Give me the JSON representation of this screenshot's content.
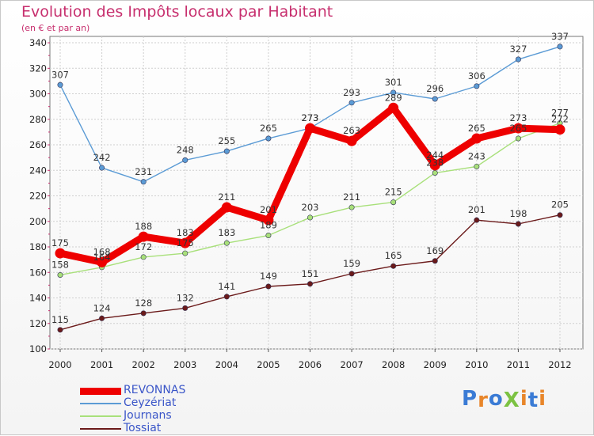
{
  "header": {
    "title": "Evolution des Impôts locaux par Habitant",
    "subtitle": "(en € et par an)"
  },
  "logo": {
    "text": "ProXiti",
    "letters": [
      "P",
      "r",
      "o",
      "X",
      "i",
      "t",
      "i"
    ],
    "colors": [
      "#3a7bd5",
      "#e8862a",
      "#3a7bd5",
      "#7cc242",
      "#e8862a",
      "#3a7bd5",
      "#e8862a"
    ]
  },
  "chart_data": {
    "type": "line",
    "title": "Evolution des Impôts locaux par Habitant",
    "subtitle": "(en € et par an)",
    "xlabel": "",
    "ylabel": "",
    "x": [
      "2000",
      "2001",
      "2002",
      "2003",
      "2004",
      "2005",
      "2006",
      "2007",
      "2008",
      "2009",
      "2010",
      "2011",
      "2012"
    ],
    "ylim": [
      100,
      345
    ],
    "yticks": [
      100,
      120,
      140,
      160,
      180,
      200,
      220,
      240,
      260,
      280,
      300,
      320,
      340
    ],
    "grid": true,
    "legend_position": "bottom-left",
    "series": [
      {
        "name": "REVONNAS",
        "color": "#ee0000",
        "values": [
          175,
          168,
          188,
          183,
          211,
          201,
          273,
          263,
          289,
          244,
          265,
          273,
          272
        ]
      },
      {
        "name": "Ceyzériat",
        "color": "#5b9bd5",
        "values": [
          307,
          242,
          231,
          248,
          255,
          265,
          273,
          293,
          301,
          296,
          306,
          327,
          337
        ]
      },
      {
        "name": "Journans",
        "color": "#a8e07a",
        "values": [
          158,
          164,
          172,
          175,
          183,
          189,
          203,
          211,
          215,
          238,
          243,
          265,
          277
        ]
      },
      {
        "name": "Tossiat",
        "color": "#6b1a1a",
        "values": [
          115,
          124,
          128,
          132,
          141,
          149,
          151,
          159,
          165,
          169,
          201,
          198,
          205
        ]
      }
    ],
    "data_labels": {
      "REVONNAS": [
        "175",
        "168",
        "188",
        "183",
        "211",
        "201",
        "273",
        "263",
        "289",
        "244",
        "265",
        "273",
        "272"
      ],
      "Ceyzériat": [
        "307",
        "242",
        "231",
        "248",
        "255",
        "265",
        "273",
        "293",
        "301",
        "296",
        "306",
        "327",
        "337"
      ],
      "Journans": [
        "158",
        "164",
        "172",
        "175",
        "183",
        "189",
        "203",
        "211",
        "215",
        "238",
        "243",
        "265",
        "277"
      ],
      "Tossiat": [
        "115",
        "124",
        "128",
        "132",
        "141",
        "149",
        "151",
        "159",
        "165",
        "169",
        "201",
        "198",
        "205"
      ]
    }
  }
}
